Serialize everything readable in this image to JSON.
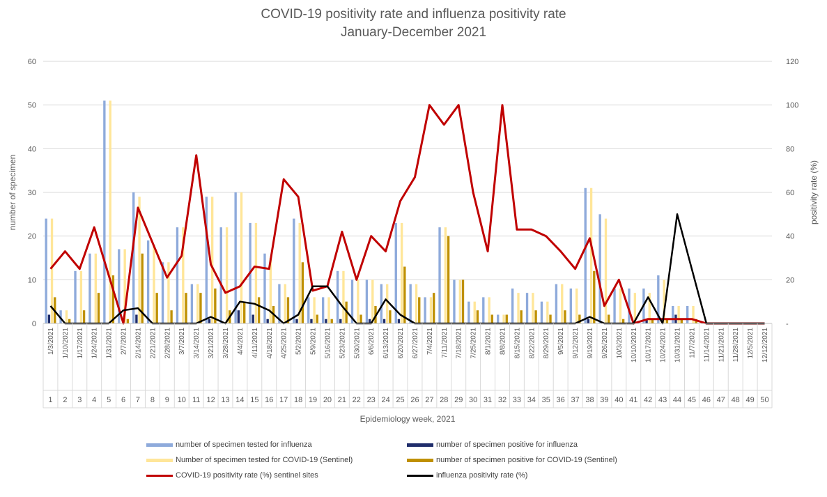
{
  "chart_data": {
    "type": "bar",
    "title": "COVID-19 positivity rate and influenza positivity rate",
    "subtitle": "January-December 2021",
    "xlabel": "Epidemiology week, 2021",
    "ylabel_left": "number of specimen",
    "ylabel_right": "positivity rate (%)",
    "ylim_left": [
      0,
      60
    ],
    "ylim_right": [
      0,
      120
    ],
    "yticks_left": [
      "0",
      "10",
      "20",
      "30",
      "40",
      "50",
      "60"
    ],
    "yticks_right": [
      "-",
      "20",
      "40",
      "60",
      "80",
      "100",
      "120"
    ],
    "grid": true,
    "legend_position": "bottom",
    "dates": [
      "1/3/2021",
      "1/10/2021",
      "1/17/2021",
      "1/24/2021",
      "1/31/2021",
      "2/7/2021",
      "2/14/2021",
      "2/21/2021",
      "2/28/2021",
      "3/7/2021",
      "3/14/2021",
      "3/21/2021",
      "3/28/2021",
      "4/4/2021",
      "4/11/2021",
      "4/18/2021",
      "4/25/2021",
      "5/2/2021",
      "5/9/2021",
      "5/16/2021",
      "5/23/2021",
      "5/30/2021",
      "6/6/2021",
      "6/13/2021",
      "6/20/2021",
      "6/27/2021",
      "7/4/2021",
      "7/11/2021",
      "7/18/2021",
      "7/25/2021",
      "8/1/2021",
      "8/8/2021",
      "8/15/2021",
      "8/22/2021",
      "8/29/2021",
      "9/5/2021",
      "9/12/2021",
      "9/19/2021",
      "9/26/2021",
      "10/3/2021",
      "10/10/2021",
      "10/17/2021",
      "10/24/2021",
      "10/31/2021",
      "11/7/2021",
      "11/14/2021",
      "11/21/2021",
      "11/28/2021",
      "12/5/2021",
      "12/12/2021"
    ],
    "weeks": [
      "1",
      "2",
      "3",
      "4",
      "5",
      "6",
      "7",
      "8",
      "9",
      "10",
      "11",
      "12",
      "13",
      "14",
      "15",
      "16",
      "17",
      "18",
      "19",
      "20",
      "21",
      "22",
      "23",
      "24",
      "25",
      "26",
      "27",
      "28",
      "29",
      "30",
      "31",
      "32",
      "33",
      "34",
      "35",
      "36",
      "37",
      "38",
      "39",
      "40",
      "41",
      "42",
      "43",
      "44",
      "45",
      "46",
      "47",
      "48",
      "49",
      "50"
    ],
    "series": [
      {
        "name": "number of specimen tested for influenza",
        "axis": "left",
        "kind": "bar",
        "color": "#8eaadb",
        "values": [
          24,
          3,
          12,
          16,
          51,
          17,
          30,
          19,
          14,
          22,
          9,
          29,
          22,
          30,
          23,
          16,
          9,
          24,
          6,
          6,
          12,
          10,
          10,
          9,
          23,
          9,
          6,
          22,
          10,
          5,
          6,
          2,
          8,
          7,
          5,
          9,
          8,
          31,
          25,
          8,
          8,
          8,
          11,
          4,
          4,
          0,
          0,
          0,
          0,
          0
        ]
      },
      {
        "name": "number of specimen positive for influenza",
        "axis": "left",
        "kind": "bar",
        "color": "#1f2d6b",
        "values": [
          2,
          0,
          0,
          0,
          0,
          0,
          2,
          0,
          0,
          0,
          0,
          1,
          0,
          3,
          2,
          1,
          0,
          1,
          1,
          1,
          1,
          0,
          1,
          1,
          1,
          0,
          0,
          0,
          0,
          0,
          0,
          0,
          0,
          0,
          0,
          0,
          0,
          1,
          0,
          0,
          0,
          1,
          0,
          2,
          0,
          0,
          0,
          0,
          0,
          0
        ]
      },
      {
        "name": "Number of specimen tested for COVID-19 (Sentinel)",
        "axis": "left",
        "kind": "bar",
        "color": "#ffe699",
        "values": [
          24,
          3,
          12,
          16,
          51,
          17,
          29,
          18,
          14,
          22,
          9,
          29,
          22,
          30,
          23,
          15,
          9,
          23,
          6,
          6,
          12,
          10,
          10,
          9,
          23,
          9,
          6,
          22,
          10,
          5,
          6,
          2,
          7,
          7,
          5,
          9,
          8,
          31,
          24,
          8,
          7,
          7,
          10,
          4,
          4,
          0,
          0,
          0,
          0,
          0
        ]
      },
      {
        "name": "number of specimen positive for COVID-19 (Sentinel)",
        "axis": "left",
        "kind": "bar",
        "color": "#bf9000",
        "values": [
          6,
          1,
          3,
          7,
          11,
          1,
          16,
          7,
          3,
          7,
          7,
          8,
          3,
          5,
          6,
          4,
          6,
          14,
          2,
          1,
          5,
          2,
          4,
          3,
          13,
          6,
          7,
          20,
          10,
          3,
          2,
          2,
          3,
          3,
          2,
          3,
          2,
          12,
          2,
          1,
          0,
          1,
          1,
          1,
          1,
          0,
          0,
          0,
          0,
          0
        ]
      },
      {
        "name": "COVID-19 positivity rate (%) sentinel sites",
        "axis": "right",
        "kind": "line",
        "color": "#c00000",
        "values": [
          25,
          33,
          25,
          44,
          22,
          0,
          53,
          37,
          21,
          31,
          77,
          27,
          14,
          17,
          26,
          25,
          66,
          58,
          15,
          17,
          42,
          20,
          40,
          33,
          56,
          67,
          100,
          91,
          100,
          60,
          33,
          100,
          43,
          43,
          40,
          33,
          25,
          39,
          8,
          20,
          0,
          2,
          2,
          2,
          2,
          0,
          0,
          0,
          0,
          0
        ]
      },
      {
        "name": "influenza positivity rate  (%)",
        "axis": "right",
        "kind": "line",
        "color": "#000000",
        "values": [
          8,
          0,
          0,
          0,
          0,
          6,
          7,
          0,
          0,
          0,
          0,
          3,
          0,
          10,
          9,
          6,
          0,
          4,
          17,
          17,
          8,
          0,
          0,
          11,
          4,
          0,
          0,
          0,
          0,
          0,
          0,
          0,
          0,
          0,
          0,
          0,
          0,
          3,
          0,
          0,
          0,
          12,
          0,
          50,
          25,
          0,
          0,
          0,
          0,
          0
        ]
      }
    ]
  },
  "legend": {
    "influenza_tested": "number of specimen tested for influenza",
    "influenza_positive": "number of specimen positive for influenza",
    "covid_tested": "Number of specimen tested for COVID-19 (Sentinel)",
    "covid_positive": "number of specimen positive for COVID-19  (Sentinel)",
    "covid_rate": "COVID-19 positivity rate (%)  sentinel sites",
    "flu_rate": "influenza positivity rate  (%)"
  }
}
